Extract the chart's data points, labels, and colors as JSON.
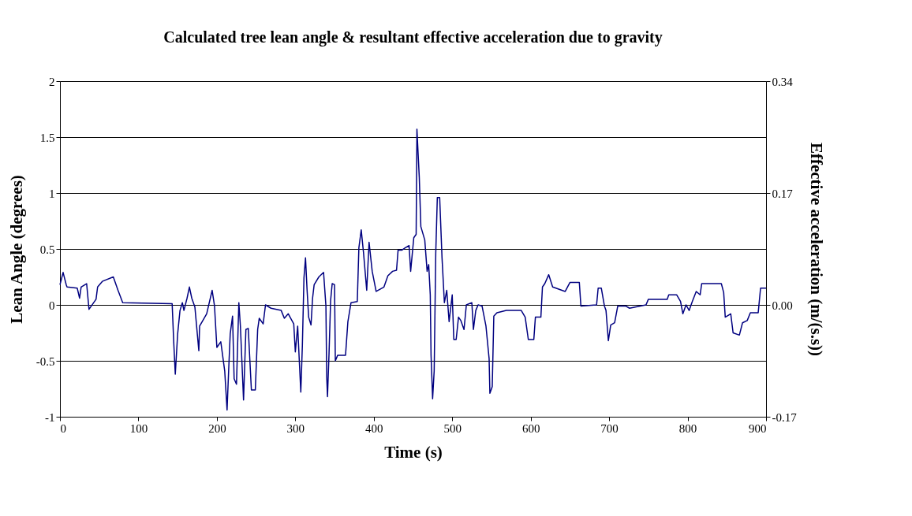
{
  "chart_data": {
    "type": "line",
    "title": "Calculated tree lean angle & resultant effective acceleration due to gravity",
    "xlabel": "Time (s)",
    "ylabel": "Lean Angle (degrees)",
    "y2label": "Effective acceleration (m/(s.s))",
    "x": [
      0,
      4,
      8,
      9,
      22,
      25,
      27,
      34,
      37,
      46,
      48,
      54,
      68,
      74,
      80,
      143,
      145,
      147,
      150,
      153,
      156,
      158,
      162,
      165,
      168,
      172,
      177,
      178,
      187,
      194,
      197,
      200,
      205,
      210,
      213,
      215,
      217,
      220,
      222,
      225,
      228,
      230,
      234,
      237,
      240,
      244,
      249,
      252,
      254,
      259,
      262,
      269,
      282,
      286,
      291,
      298,
      300,
      303,
      305,
      307,
      309,
      311,
      313,
      315,
      317,
      320,
      322,
      324,
      330,
      336,
      339,
      340,
      341,
      343,
      345,
      347,
      350,
      351,
      354,
      364,
      367,
      371,
      379,
      381,
      384,
      387,
      391,
      394,
      398,
      403,
      413,
      418,
      424,
      429,
      431,
      436,
      440,
      445,
      447,
      451,
      454,
      455,
      458,
      460,
      465,
      468,
      470,
      472,
      473,
      475,
      477,
      479,
      481,
      484,
      487,
      490,
      493,
      496,
      500,
      502,
      505,
      508,
      511,
      515,
      518,
      525,
      527,
      530,
      533,
      538,
      543,
      547,
      548,
      551,
      553,
      557,
      569,
      588,
      593,
      597,
      604,
      606,
      613,
      615,
      618,
      623,
      628,
      644,
      650,
      662,
      664,
      684,
      686,
      690,
      694,
      696,
      699,
      702,
      707,
      711,
      721,
      726,
      747,
      750,
      774,
      776,
      786,
      791,
      794,
      798,
      802,
      806,
      811,
      816,
      818,
      843,
      846,
      848,
      855,
      858,
      866,
      870,
      876,
      880,
      890,
      893,
      900
    ],
    "series": [
      {
        "color": "#000080",
        "values": [
          0.18,
          0.29,
          0.18,
          0.16,
          0.15,
          0.06,
          0.16,
          0.19,
          -0.04,
          0.05,
          0.16,
          0.21,
          0.25,
          0.13,
          0.02,
          0.01,
          -0.33,
          -0.62,
          -0.26,
          -0.05,
          0.02,
          -0.05,
          0.06,
          0.16,
          0.06,
          -0.02,
          -0.41,
          -0.19,
          -0.08,
          0.13,
          -0.01,
          -0.38,
          -0.33,
          -0.59,
          -0.94,
          -0.59,
          -0.26,
          -0.1,
          -0.66,
          -0.71,
          0.02,
          -0.19,
          -0.85,
          -0.22,
          -0.21,
          -0.76,
          -0.76,
          -0.22,
          -0.12,
          -0.17,
          0.0,
          -0.03,
          -0.05,
          -0.12,
          -0.08,
          -0.17,
          -0.42,
          -0.19,
          -0.49,
          -0.78,
          -0.36,
          0.24,
          0.42,
          0.13,
          -0.11,
          -0.18,
          0.06,
          0.18,
          0.25,
          0.29,
          -0.01,
          -0.64,
          -0.82,
          -0.43,
          0.04,
          0.19,
          0.18,
          -0.5,
          -0.45,
          -0.45,
          -0.15,
          0.02,
          0.03,
          0.51,
          0.67,
          0.46,
          0.13,
          0.56,
          0.3,
          0.12,
          0.16,
          0.26,
          0.3,
          0.31,
          0.49,
          0.49,
          0.51,
          0.53,
          0.3,
          0.6,
          0.63,
          1.57,
          1.14,
          0.7,
          0.58,
          0.3,
          0.36,
          0.09,
          -0.45,
          -0.84,
          -0.59,
          0.46,
          0.96,
          0.96,
          0.42,
          0.02,
          0.13,
          -0.15,
          0.09,
          -0.31,
          -0.31,
          -0.11,
          -0.14,
          -0.22,
          0.0,
          0.02,
          -0.22,
          -0.05,
          0.0,
          -0.01,
          -0.19,
          -0.48,
          -0.79,
          -0.73,
          -0.1,
          -0.07,
          -0.05,
          -0.05,
          -0.11,
          -0.31,
          -0.31,
          -0.11,
          -0.11,
          0.16,
          0.19,
          0.27,
          0.16,
          0.12,
          0.2,
          0.2,
          -0.01,
          0.0,
          0.15,
          0.15,
          -0.01,
          -0.05,
          -0.32,
          -0.18,
          -0.16,
          -0.01,
          -0.01,
          -0.03,
          0.0,
          0.05,
          0.05,
          0.09,
          0.09,
          0.03,
          -0.08,
          0.0,
          -0.05,
          0.03,
          0.12,
          0.09,
          0.19,
          0.19,
          0.11,
          -0.11,
          -0.08,
          -0.25,
          -0.27,
          -0.16,
          -0.14,
          -0.07,
          -0.07,
          0.15,
          0.15
        ]
      }
    ],
    "xlim": [
      0,
      900
    ],
    "xticks": [
      0,
      100,
      200,
      300,
      400,
      500,
      600,
      700,
      800,
      900
    ],
    "ylim": [
      -1,
      2
    ],
    "yticks": [
      -1,
      -0.5,
      0,
      0.5,
      1,
      1.5,
      2
    ],
    "y2lim": [
      -0.17,
      0.34
    ],
    "y2ticks": [
      -0.17,
      {
        "value": 0,
        "label": "0.00"
      },
      0.17,
      0.34
    ],
    "grid": "y"
  }
}
